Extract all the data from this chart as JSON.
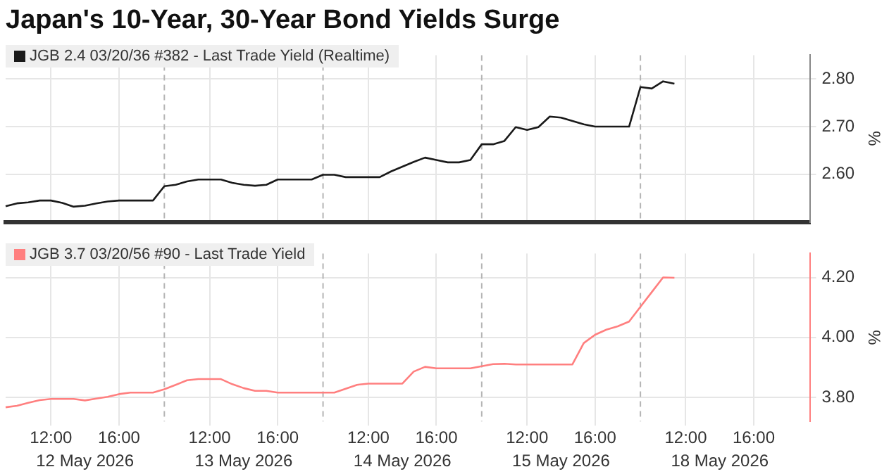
{
  "chart_data": [
    {
      "type": "line",
      "title": "Japan's 10-Year, 30-Year Bond Yields Surge",
      "ylabel": "%",
      "categories": [
        null,
        null,
        null,
        null,
        null,
        null,
        null,
        null,
        null,
        null,
        null,
        null,
        null,
        null,
        null,
        null,
        null,
        null,
        null,
        null,
        null,
        null,
        null,
        null,
        null,
        null,
        null,
        null,
        null,
        null,
        null,
        null,
        null,
        null,
        null,
        null,
        null,
        null,
        null,
        null,
        null,
        null,
        null,
        null,
        null,
        null,
        null,
        null,
        null,
        null,
        null,
        null,
        null,
        null,
        null,
        null,
        null,
        null,
        null,
        null,
        null,
        null,
        null,
        null,
        null,
        null,
        null,
        null,
        null,
        null,
        null,
        null
      ],
      "series": [
        {
          "name": "JGB 2.4 03/20/36 #382 - Last Trade Yield (Realtime)",
          "color": "#1a1a1a",
          "values": [
            2.533,
            2.539,
            2.541,
            2.545,
            2.545,
            2.54,
            2.532,
            2.534,
            2.539,
            2.543,
            2.545,
            2.545,
            2.545,
            2.545,
            2.575,
            2.578,
            2.585,
            2.589,
            2.589,
            2.589,
            2.582,
            2.578,
            2.576,
            2.578,
            2.589,
            2.589,
            2.589,
            2.589,
            2.599,
            2.599,
            2.594,
            2.594,
            2.594,
            2.594,
            2.606,
            2.616,
            2.626,
            2.635,
            2.63,
            2.625,
            2.625,
            2.63,
            2.663,
            2.663,
            2.67,
            2.699,
            2.693,
            2.699,
            2.721,
            2.719,
            2.712,
            2.705,
            2.7,
            2.7,
            2.7,
            2.7,
            2.783,
            2.78,
            2.795,
            2.79,
            null,
            null,
            null,
            null,
            null,
            null,
            null,
            null,
            null,
            null,
            null,
            null
          ]
        }
      ],
      "ylim": [
        2.5,
        2.85
      ],
      "yticks": [
        {
          "value": 2.6,
          "label": "2.60"
        },
        {
          "value": 2.7,
          "label": "2.70"
        },
        {
          "value": 2.8,
          "label": "2.80"
        }
      ],
      "grid": true,
      "legend": "top left",
      "tick_labels": "y"
    },
    {
      "type": "line",
      "ylabel": "%",
      "categories": [
        null,
        null,
        null,
        null,
        "12:00",
        null,
        null,
        null,
        null,
        null,
        "16:00",
        null,
        null,
        null,
        null,
        null,
        null,
        null,
        "12:00",
        null,
        null,
        null,
        null,
        null,
        "16:00",
        null,
        null,
        null,
        null,
        null,
        null,
        null,
        "12:00",
        null,
        null,
        null,
        null,
        null,
        "16:00",
        null,
        null,
        null,
        null,
        null,
        null,
        null,
        "12:00",
        null,
        null,
        null,
        null,
        null,
        "16:00",
        null,
        null,
        null,
        null,
        null,
        null,
        null,
        "12:00",
        null,
        null,
        null,
        null,
        null,
        "16:00",
        null,
        null,
        null,
        null,
        null
      ],
      "series": [
        {
          "name": "JGB 3.7 03/20/56 #90 - Last Trade Yield",
          "color": "#ff7f7f",
          "values": [
            3.767,
            3.772,
            3.782,
            3.791,
            3.795,
            3.795,
            3.795,
            3.79,
            3.796,
            3.802,
            3.811,
            3.816,
            3.816,
            3.816,
            3.827,
            3.842,
            3.857,
            3.861,
            3.861,
            3.861,
            3.844,
            3.831,
            3.822,
            3.822,
            3.816,
            3.816,
            3.816,
            3.816,
            3.816,
            3.816,
            3.829,
            3.842,
            3.846,
            3.846,
            3.846,
            3.846,
            3.886,
            3.902,
            3.897,
            3.897,
            3.897,
            3.897,
            3.904,
            3.911,
            3.912,
            3.91,
            3.91,
            3.91,
            3.91,
            3.91,
            3.91,
            3.981,
            4.009,
            4.026,
            4.037,
            4.053,
            4.102,
            4.151,
            4.2,
            4.199,
            null,
            null,
            null,
            null,
            null,
            null,
            null,
            null,
            null,
            null,
            null,
            null
          ]
        }
      ],
      "ylim": [
        3.72,
        4.28
      ],
      "yticks": [
        {
          "value": 3.8,
          "label": "3.80"
        },
        {
          "value": 4.0,
          "label": "4.00"
        },
        {
          "value": 4.2,
          "label": "4.20"
        }
      ],
      "annotations": [
        "12 May 2026",
        "13 May 2026",
        "14 May 2026",
        "15 May 2026",
        "18 May 2026"
      ],
      "grid": true,
      "legend": "top left"
    }
  ]
}
